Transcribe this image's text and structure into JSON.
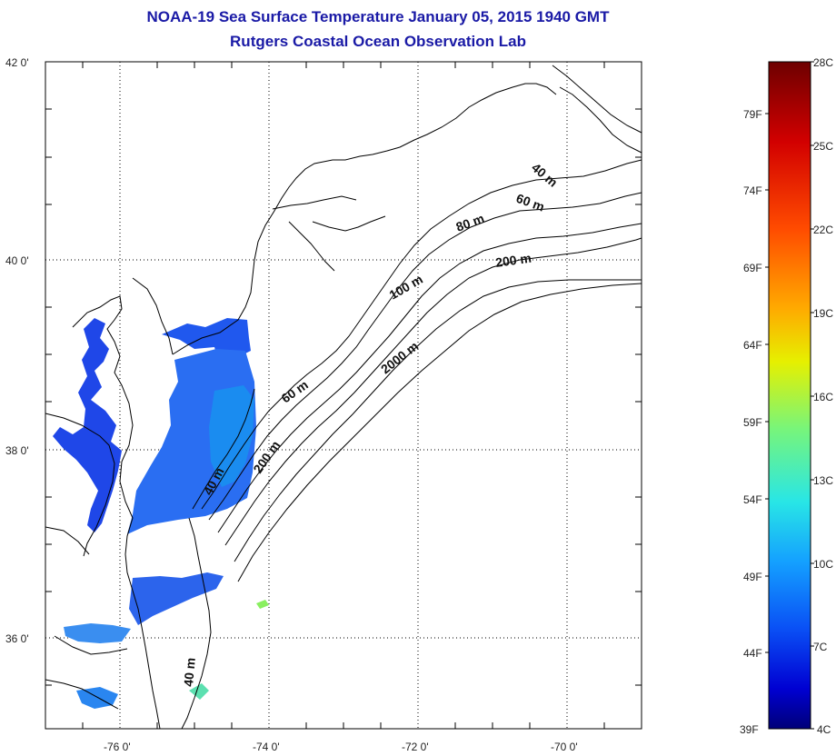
{
  "header": {
    "title": "NOAA-19 Sea Surface Temperature January 05, 2015 1940 GMT",
    "subtitle": "Rutgers Coastal Ocean Observation Lab"
  },
  "map": {
    "lat_ticks": [
      "42 0'",
      "40 0'",
      "38 0'",
      "36 0'"
    ],
    "lon_ticks": [
      "-76 0'",
      "-74 0'",
      "-72 0'",
      "-70 0'"
    ],
    "contour_labels": [
      "40 m",
      "60 m",
      "80 m",
      "200 m",
      "100 m",
      "2000 m",
      "60 m",
      "200 m",
      "40 m",
      "40 m"
    ],
    "colors": {
      "water_cold": "#1e46e6",
      "water_mid": "#2a78f0",
      "coast_line": "#000000",
      "grid": "#000000"
    }
  },
  "colorbar": {
    "fahrenheit_labels": [
      "79F",
      "74F",
      "69F",
      "64F",
      "59F",
      "54F",
      "49F",
      "44F",
      "39F"
    ],
    "celsius_labels": [
      "28C",
      "25C",
      "22C",
      "19C",
      "16C",
      "13C",
      "10C",
      "7C",
      "4C"
    ],
    "colors": [
      "#7a0000",
      "#c80000",
      "#ff3000",
      "#ff8c00",
      "#ffd200",
      "#d2ff28",
      "#78ff82",
      "#28ffd2",
      "#00b4ff",
      "#0064ff",
      "#0000d2",
      "#000082"
    ]
  }
}
